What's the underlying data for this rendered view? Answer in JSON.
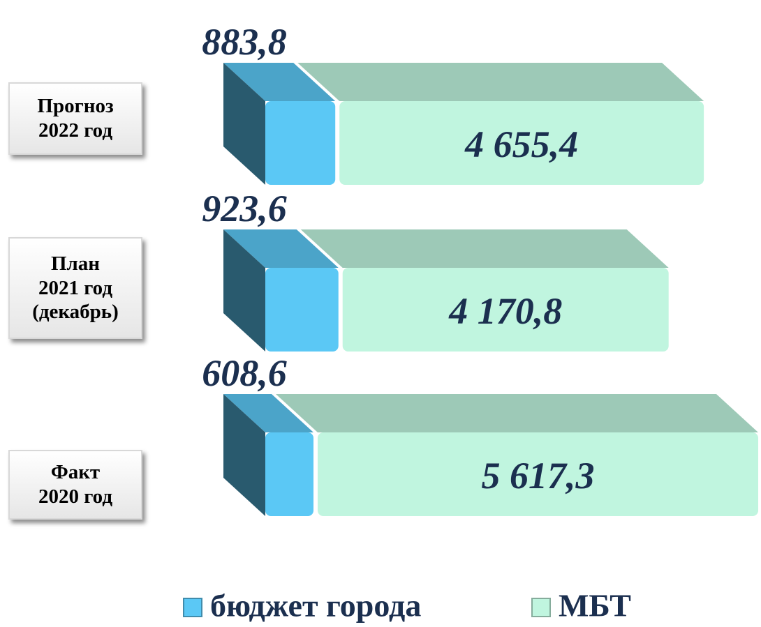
{
  "chart_data": {
    "type": "bar3d_stacked",
    "categories": [
      "Прогноз\n2022 год",
      "План\n2021 год\n(декабрь)",
      "Факт\n2020 год"
    ],
    "series": [
      {
        "name": "бюджет города",
        "color": "#5bc8f5",
        "values": [
          883.8,
          923.6,
          608.6
        ],
        "value_labels": [
          "883,8",
          "923,6",
          "608,6"
        ]
      },
      {
        "name": "МБТ",
        "color": "#c0f5df",
        "values": [
          4655.4,
          4170.8,
          5617.3
        ],
        "value_labels": [
          "4 655,4",
          "4 170,8",
          "5 617,3"
        ]
      }
    ]
  }
}
